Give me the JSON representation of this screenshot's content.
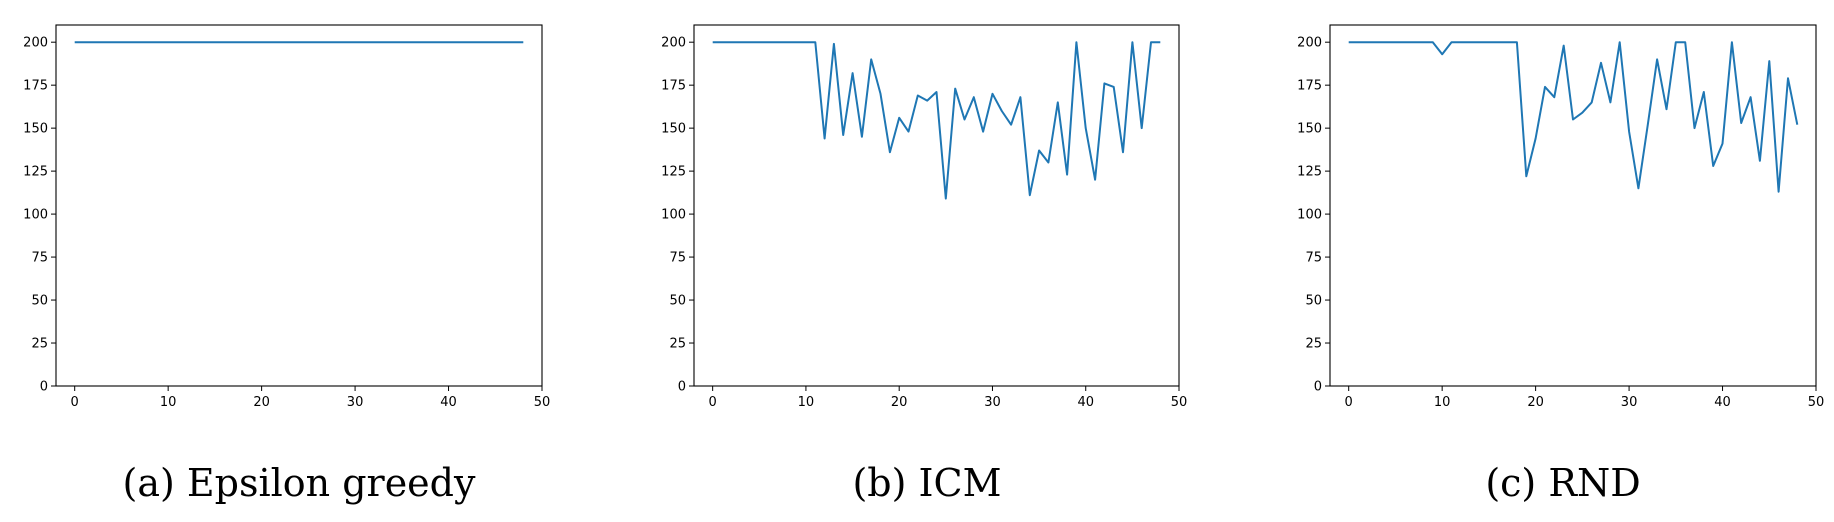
{
  "colors": {
    "line": "#1f77b4",
    "background": "#ffffff",
    "axes": "#000000"
  },
  "chart_data": [
    {
      "type": "line",
      "caption": "(a) Epsilon greedy",
      "xlabel": "",
      "ylabel": "",
      "xlim": [
        -2,
        50
      ],
      "ylim": [
        0,
        210
      ],
      "x_ticks": [
        0,
        10,
        20,
        30,
        40,
        50
      ],
      "y_ticks": [
        0,
        25,
        50,
        75,
        100,
        125,
        150,
        175,
        200
      ],
      "grid": false,
      "series": [
        {
          "x": [
            0,
            1,
            2,
            3,
            4,
            5,
            6,
            7,
            8,
            9,
            10,
            11,
            12,
            13,
            14,
            15,
            16,
            17,
            18,
            19,
            20,
            21,
            22,
            23,
            24,
            25,
            26,
            27,
            28,
            29,
            30,
            31,
            32,
            33,
            34,
            35,
            36,
            37,
            38,
            39,
            40,
            41,
            42,
            43,
            44,
            45,
            46,
            47,
            48
          ],
          "values": [
            200,
            200,
            200,
            200,
            200,
            200,
            200,
            200,
            200,
            200,
            200,
            200,
            200,
            200,
            200,
            200,
            200,
            200,
            200,
            200,
            200,
            200,
            200,
            200,
            200,
            200,
            200,
            200,
            200,
            200,
            200,
            200,
            200,
            200,
            200,
            200,
            200,
            200,
            200,
            200,
            200,
            200,
            200,
            200,
            200,
            200,
            200,
            200,
            200
          ]
        }
      ]
    },
    {
      "type": "line",
      "caption": "(b) ICM",
      "xlabel": "",
      "ylabel": "",
      "xlim": [
        -2,
        50
      ],
      "ylim": [
        0,
        210
      ],
      "x_ticks": [
        0,
        10,
        20,
        30,
        40,
        50
      ],
      "y_ticks": [
        0,
        25,
        50,
        75,
        100,
        125,
        150,
        175,
        200
      ],
      "grid": false,
      "series": [
        {
          "x": [
            0,
            1,
            2,
            3,
            4,
            5,
            6,
            7,
            8,
            9,
            10,
            11,
            12,
            13,
            14,
            15,
            16,
            17,
            18,
            19,
            20,
            21,
            22,
            23,
            24,
            25,
            26,
            27,
            28,
            29,
            30,
            31,
            32,
            33,
            34,
            35,
            36,
            37,
            38,
            39,
            40,
            41,
            42,
            43,
            44,
            45,
            46,
            47,
            48
          ],
          "values": [
            200,
            200,
            200,
            200,
            200,
            200,
            200,
            200,
            200,
            200,
            200,
            200,
            144,
            199,
            146,
            182,
            145,
            190,
            170,
            136,
            156,
            148,
            169,
            166,
            171,
            109,
            173,
            155,
            168,
            148,
            170,
            160,
            152,
            168,
            111,
            137,
            130,
            165,
            123,
            200,
            150,
            120,
            176,
            174,
            136,
            200,
            150,
            200,
            200
          ]
        }
      ]
    },
    {
      "type": "line",
      "caption": "(c) RND",
      "xlabel": "",
      "ylabel": "",
      "xlim": [
        -2,
        50
      ],
      "ylim": [
        0,
        210
      ],
      "x_ticks": [
        0,
        10,
        20,
        30,
        40,
        50
      ],
      "y_ticks": [
        0,
        25,
        50,
        75,
        100,
        125,
        150,
        175,
        200
      ],
      "grid": false,
      "series": [
        {
          "x": [
            0,
            1,
            2,
            3,
            4,
            5,
            6,
            7,
            8,
            9,
            10,
            11,
            12,
            13,
            14,
            15,
            16,
            17,
            18,
            19,
            20,
            21,
            22,
            23,
            24,
            25,
            26,
            27,
            28,
            29,
            30,
            31,
            32,
            33,
            34,
            35,
            36,
            37,
            38,
            39,
            40,
            41,
            42,
            43,
            44,
            45,
            46,
            47,
            48
          ],
          "values": [
            200,
            200,
            200,
            200,
            200,
            200,
            200,
            200,
            200,
            200,
            193,
            200,
            200,
            200,
            200,
            200,
            200,
            200,
            200,
            122,
            144,
            174,
            168,
            198,
            155,
            159,
            165,
            188,
            165,
            200,
            148,
            115,
            152,
            190,
            161,
            200,
            200,
            150,
            171,
            128,
            141,
            200,
            153,
            168,
            131,
            189,
            113,
            179,
            152
          ]
        }
      ]
    }
  ]
}
